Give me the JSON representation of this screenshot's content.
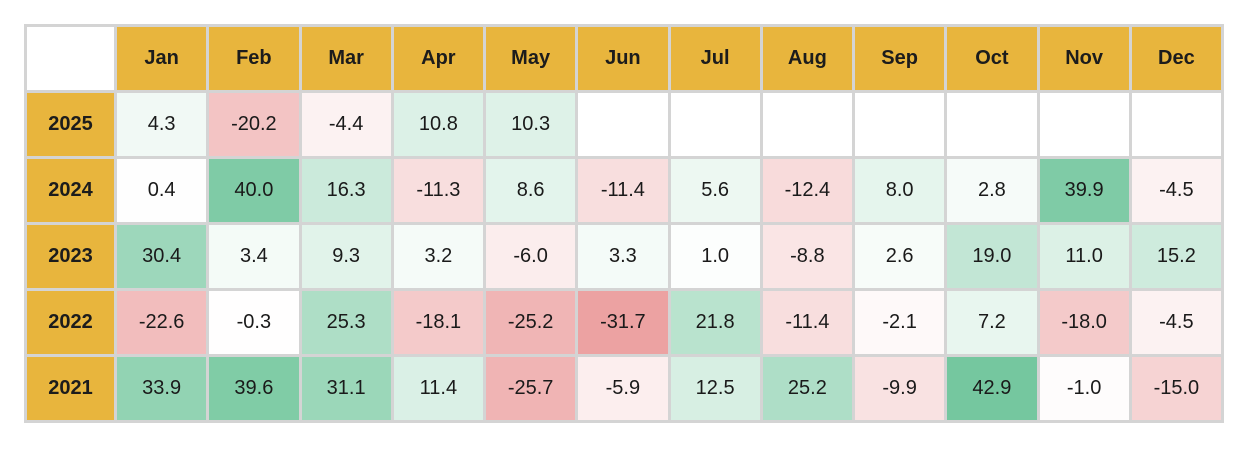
{
  "chart_data": {
    "type": "heatmap",
    "title": "",
    "columns": [
      "Jan",
      "Feb",
      "Mar",
      "Apr",
      "May",
      "Jun",
      "Jul",
      "Aug",
      "Sep",
      "Oct",
      "Nov",
      "Dec"
    ],
    "rows": [
      {
        "year": "2025",
        "values": [
          4.3,
          -20.2,
          -4.4,
          10.8,
          10.3,
          null,
          null,
          null,
          null,
          null,
          null,
          null
        ]
      },
      {
        "year": "2024",
        "values": [
          0.4,
          40.0,
          16.3,
          -11.3,
          8.6,
          -11.4,
          5.6,
          -12.4,
          8.0,
          2.8,
          39.9,
          -4.5
        ]
      },
      {
        "year": "2023",
        "values": [
          30.4,
          3.4,
          9.3,
          3.2,
          -6.0,
          3.3,
          1.0,
          -8.8,
          2.6,
          19.0,
          11.0,
          15.2
        ]
      },
      {
        "year": "2022",
        "values": [
          -22.6,
          -0.3,
          25.3,
          -18.1,
          -25.2,
          -31.7,
          21.8,
          -11.4,
          -2.1,
          7.2,
          -18.0,
          -4.5
        ]
      },
      {
        "year": "2021",
        "values": [
          33.9,
          39.6,
          31.1,
          11.4,
          -25.7,
          -5.9,
          12.5,
          25.2,
          -9.9,
          42.9,
          -1.0,
          -15.0
        ]
      }
    ],
    "colors": {
      "header": "#e8b53d",
      "positive": "#57bb8a",
      "negative": "#e06666",
      "neutral": "#ffffff",
      "grid": "#d4d4d4"
    }
  }
}
